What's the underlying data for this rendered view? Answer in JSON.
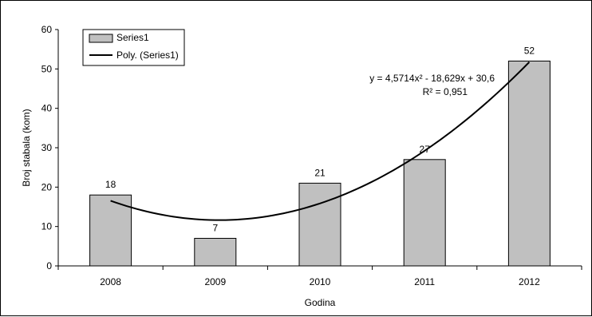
{
  "chart_data": {
    "type": "bar",
    "categories": [
      "2008",
      "2009",
      "2010",
      "2011",
      "2012"
    ],
    "series": [
      {
        "name": "Series1",
        "values": [
          18,
          7,
          21,
          27,
          52
        ],
        "color": "#c0c0c0"
      }
    ],
    "trendline": {
      "name": "Poly. (Series1)",
      "type": "polynomial",
      "order": 2,
      "coefficients": [
        4.5714,
        -18.629,
        30.6
      ],
      "equation": "y = 4,5714x² - 18,629x + 30,6",
      "r_squared": "R² = 0,951",
      "color": "#000000"
    },
    "data_labels": [
      "18",
      "7",
      "21",
      "27",
      "52"
    ],
    "y_ticks": [
      0,
      10,
      20,
      30,
      40,
      50,
      60
    ],
    "y_tick_labels": [
      "0",
      "10",
      "20",
      "30",
      "40",
      "50",
      "60"
    ],
    "ylim": [
      0,
      60
    ],
    "xlabel": "Godina",
    "ylabel": "Broj stabala (kom)",
    "legend": {
      "placement": "top-left",
      "entries": [
        "Series1",
        "Poly. (Series1)"
      ]
    },
    "grid": false
  }
}
